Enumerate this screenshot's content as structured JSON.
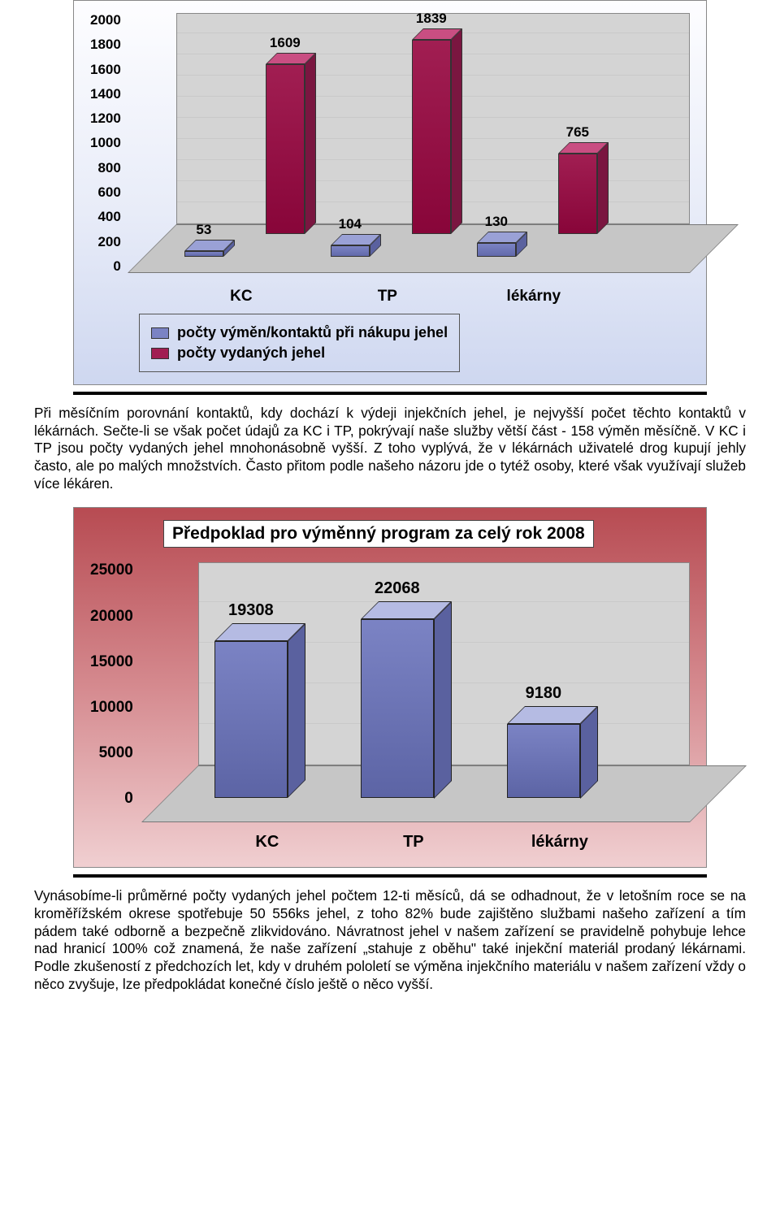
{
  "chart1": {
    "type": "bar-3d-grouped",
    "categories": [
      "KC",
      "TP",
      "lékárny"
    ],
    "series": [
      {
        "name": "počty výměn/kontaktů při nákupu jehel",
        "values": [
          53,
          104,
          130
        ],
        "face": "#7b83c4",
        "top": "#9aa1d6",
        "side": "#5a619f"
      },
      {
        "name": "počty vydaných jehel",
        "values": [
          1609,
          1839,
          765
        ],
        "face": "#a11e52",
        "top": "#c94e82",
        "side": "#7a1640"
      }
    ],
    "ylim": [
      0,
      2000
    ],
    "ystep": 200,
    "label_fontsize": 17,
    "grid_color": "#c9c9c9",
    "background_gradient": [
      "#ced7f0",
      "#fdfdff"
    ]
  },
  "paragraph1": "Při měsíčním porovnání kontaktů, kdy dochází k výdeji injekčních jehel, je nejvyšší počet těchto kontaktů v lékárnách. Sečte-li se však počet údajů za KC i TP, pokrývají naše služby větší část - 158 výměn měsíčně. V KC i TP jsou počty vydaných jehel mnohonásobně vyšší. Z toho vyplývá, že v lékárnách uživatelé drog kupují jehly často, ale po malých množstvích. Často přitom podle našeho názoru jde o tytéž osoby, které však využívají služeb více lékáren.",
  "chart2": {
    "type": "bar-3d",
    "title": "Předpoklad pro výměnný program za celý rok 2008",
    "categories": [
      "KC",
      "TP",
      "lékárny"
    ],
    "values": [
      19308,
      22068,
      9180
    ],
    "bar": {
      "face": "#7b83c4",
      "top": "#b5bbe3",
      "side": "#5a619f"
    },
    "ylim": [
      0,
      25000
    ],
    "ystep": 5000,
    "label_fontsize": 19,
    "background_gradient": [
      "#b74b52",
      "#f0cfd1"
    ]
  },
  "paragraph2": "Vynásobíme-li průměrné počty vydaných jehel počtem 12-ti měsíců, dá se odhadnout, že v letošním roce se na kroměřížském okrese spotřebuje 50 556ks jehel, z toho 82% bude zajištěno službami našeho zařízení a tím pádem také odborně a bezpečně zlikvidováno. Návratnost jehel v našem zařízení se pravidelně pohybuje lehce nad hranicí 100% což znamená, že naše zařízení „stahuje z oběhu\" také injekční materiál prodaný lékárnami. Podle zkušeností z předchozích let, kdy v druhém pololetí se výměna injekčního materiálu v našem zařízení vždy o něco zvyšuje, lze předpokládat konečné číslo ještě o něco vyšší."
}
